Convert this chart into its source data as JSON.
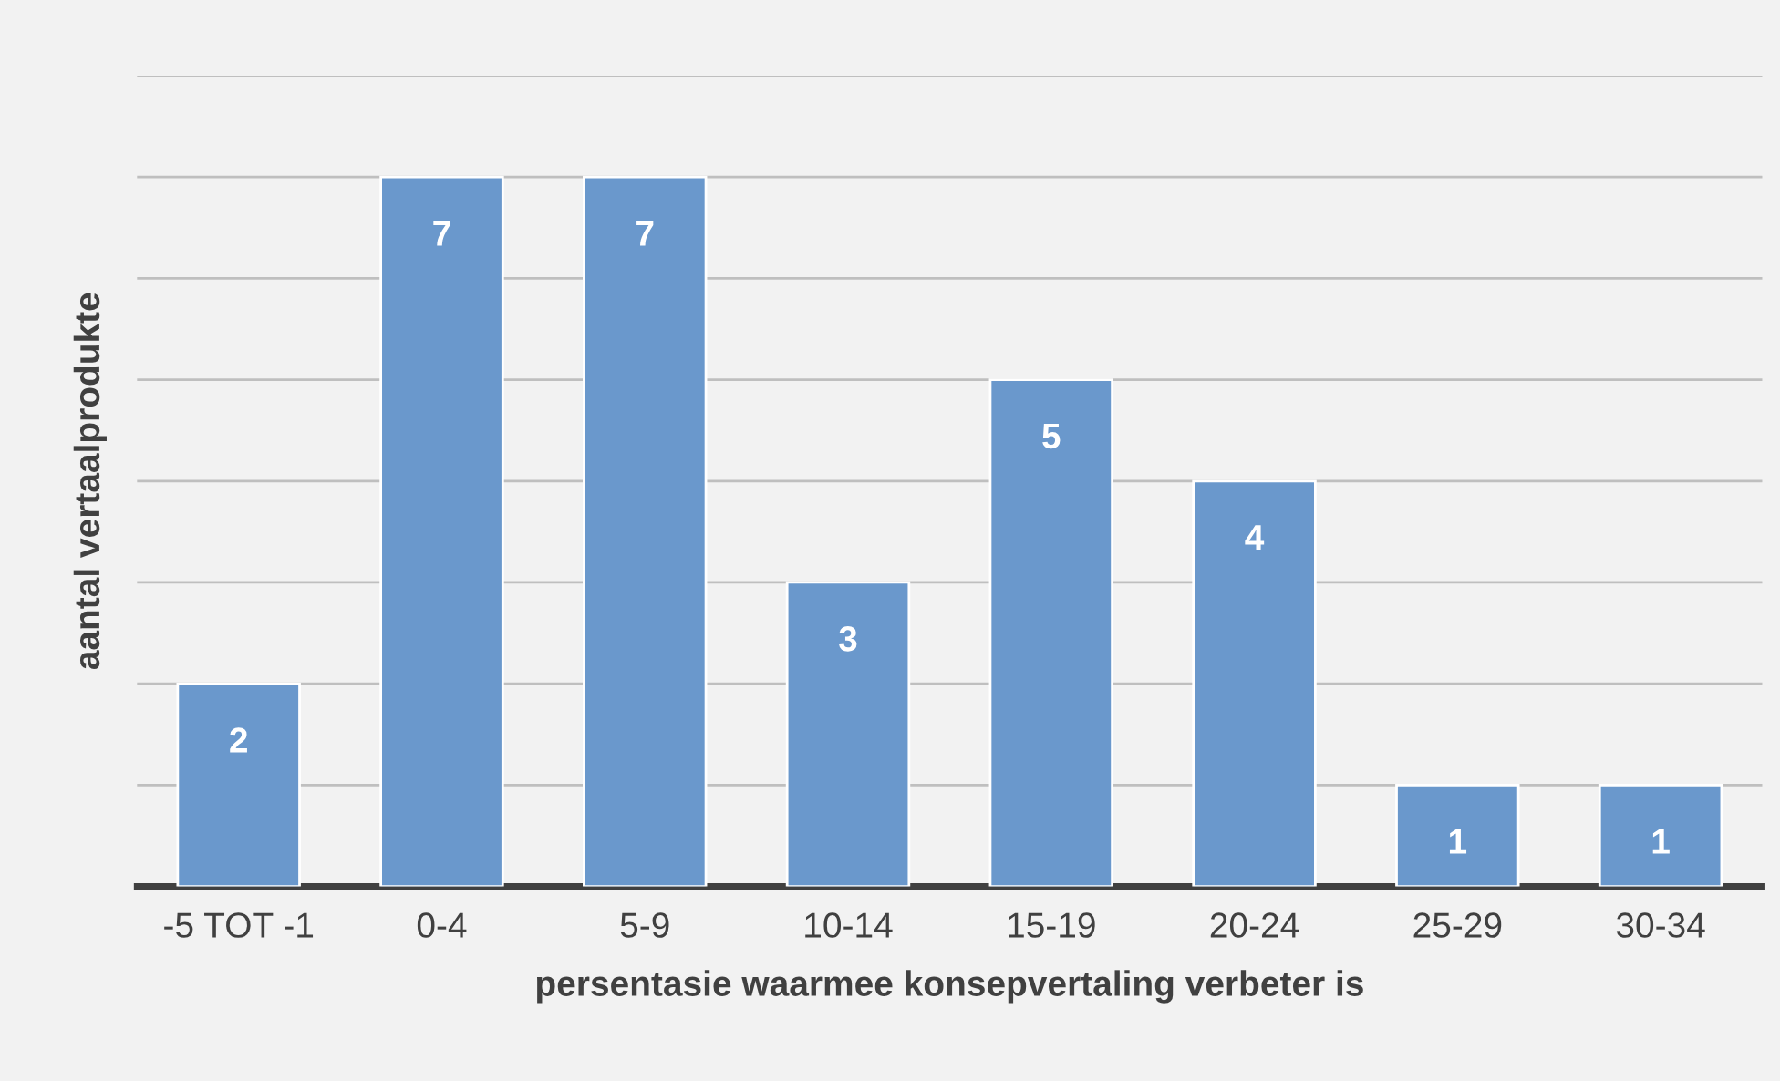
{
  "chart_data": {
    "type": "bar",
    "xlabel": "persentasie waarmee konsepvertaling verbeter is",
    "ylabel": "aantal vertaalprodukte",
    "categories": [
      "-5 TOT -1",
      "0-4",
      "5-9",
      "10-14",
      "15-19",
      "20-24",
      "25-29",
      "30-34"
    ],
    "values": [
      2,
      7,
      7,
      3,
      5,
      4,
      1,
      1
    ],
    "color": "#6a98cc",
    "ylim": [
      0,
      8
    ],
    "yticks": [
      {
        "value": 0,
        "label": null
      },
      {
        "value": 1,
        "label": null
      },
      {
        "value": 2,
        "label": null
      },
      {
        "value": 3,
        "label": null
      },
      {
        "value": 4,
        "label": null
      },
      {
        "value": 5,
        "label": null
      },
      {
        "value": 6,
        "label": null
      },
      {
        "value": 7,
        "label": null
      },
      {
        "value": 8,
        "label": null
      }
    ],
    "grid": "y",
    "data_labels": true,
    "tick_labels": "x"
  }
}
